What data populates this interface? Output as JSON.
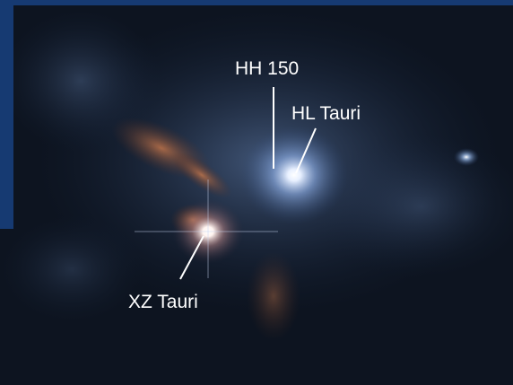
{
  "labels": [
    "HH 150",
    "HL Tauri",
    "XZ Tauri"
  ]
}
